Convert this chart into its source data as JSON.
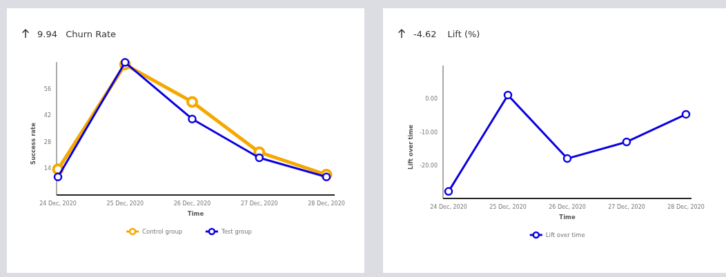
{
  "chart_data": [
    {
      "type": "line",
      "title": "Churn Rate",
      "annotations": [
        "9.94"
      ],
      "xlabel": "Time",
      "ylabel": "Success rate",
      "categories": [
        "24 Dec, 2020",
        "25 Dec, 2020",
        "26 Dec, 2020",
        "27 Dec, 2020",
        "28 Dec, 2020"
      ],
      "series": [
        {
          "name": "Control group",
          "color": "#f5a800",
          "values": [
            13.5,
            68.7,
            49,
            22.5,
            10.7
          ]
        },
        {
          "name": "Test group",
          "color": "#0a00e0",
          "values": [
            9.5,
            69.8,
            40,
            19.6,
            9.5
          ]
        }
      ],
      "ylim": [
        0,
        70
      ],
      "yticks": [
        14,
        28,
        42,
        56
      ],
      "marker": "circle",
      "legend": "bottom",
      "grid": false
    },
    {
      "type": "line",
      "title": "Lift (%)",
      "annotations": [
        "-4.62"
      ],
      "xlabel": "Time",
      "ylabel": "Lift over time",
      "categories": [
        "24 Dec, 2020",
        "25 Dec, 2020",
        "26 Dec, 2020",
        "27 Dec, 2020",
        "28 Dec, 2020"
      ],
      "series": [
        {
          "name": "Lift over time",
          "color": "#0a00e0",
          "values": [
            -27.9,
            1.1,
            -18.0,
            -13.0,
            -4.7
          ]
        }
      ],
      "ylim": [
        -30,
        10
      ],
      "yticks": [
        {
          "value": 0,
          "label": "0.00"
        },
        {
          "value": -10,
          "label": "-10.00"
        },
        {
          "value": -20,
          "label": "-20.00"
        }
      ],
      "marker": "circle",
      "legend": "bottom",
      "grid": false
    }
  ]
}
